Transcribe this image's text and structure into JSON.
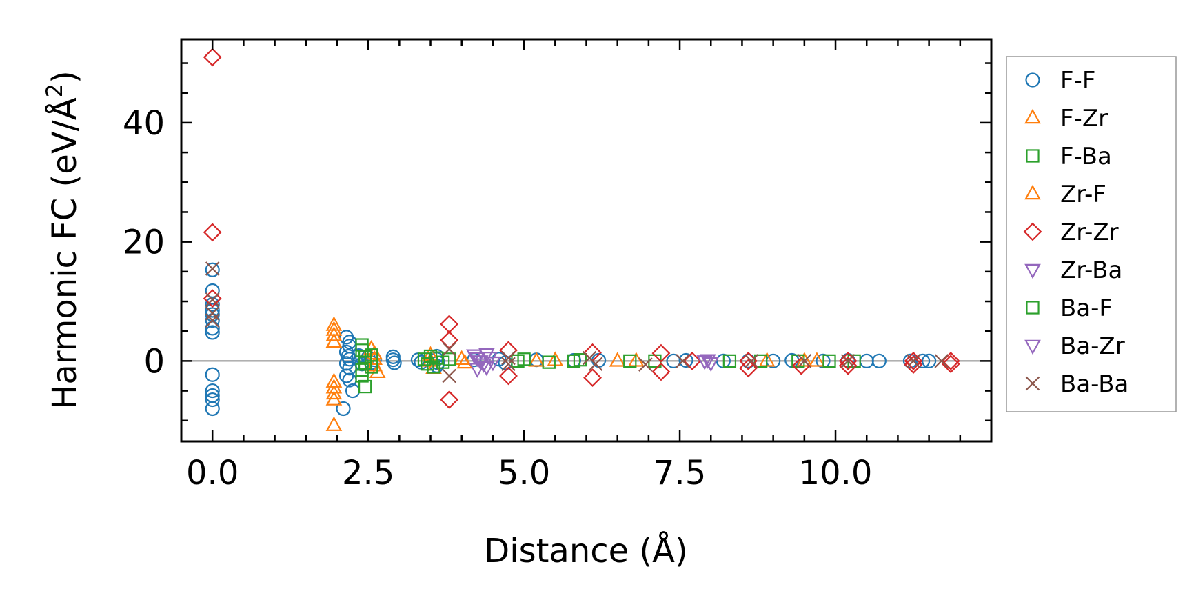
{
  "chart_data": {
    "type": "scatter",
    "title": "",
    "xlabel": "Distance (Å)",
    "ylabel_main": "Harmonic FC (eV/Å",
    "ylabel_sup": "2",
    "ylabel_close": ")",
    "xlim": [
      -0.5,
      12.5
    ],
    "ylim": [
      -13.5,
      54
    ],
    "xticks": [
      0.0,
      2.5,
      5.0,
      7.5,
      10.0
    ],
    "xtick_labels": [
      "0.0",
      "2.5",
      "5.0",
      "7.5",
      "10.0"
    ],
    "yticks": [
      0,
      20,
      40
    ],
    "ytick_labels": [
      "0",
      "20",
      "40"
    ],
    "zero_line": true,
    "legend_position": "outside-right",
    "series": [
      {
        "name": "F-F",
        "marker": "circle",
        "color": "#1f77b4",
        "points": [
          [
            0,
            15.3
          ],
          [
            0,
            11.8
          ],
          [
            0,
            9.5
          ],
          [
            0,
            8.5
          ],
          [
            0,
            7.8
          ],
          [
            0,
            6.8
          ],
          [
            0,
            5.5
          ],
          [
            0,
            4.8
          ],
          [
            0,
            -2.3
          ],
          [
            0,
            -5
          ],
          [
            0,
            -5.8
          ],
          [
            0,
            -6.5
          ],
          [
            0,
            -8
          ],
          [
            2.15,
            4
          ],
          [
            2.2,
            3.2
          ],
          [
            2.2,
            2.5
          ],
          [
            2.15,
            1.5
          ],
          [
            2.18,
            0.8
          ],
          [
            2.2,
            0.3
          ],
          [
            2.15,
            -0.4
          ],
          [
            2.2,
            -1.2
          ],
          [
            2.15,
            -2.5
          ],
          [
            2.2,
            -3.2
          ],
          [
            2.25,
            -5
          ],
          [
            2.1,
            -8
          ],
          [
            2.35,
            0.9
          ],
          [
            2.4,
            -0.5
          ],
          [
            2.5,
            0.6
          ],
          [
            2.55,
            -0.3
          ],
          [
            2.6,
            0.2
          ],
          [
            2.9,
            0.7
          ],
          [
            2.9,
            0.2
          ],
          [
            2.92,
            -0.3
          ],
          [
            3.3,
            0.2
          ],
          [
            3.35,
            -0.2
          ],
          [
            3.6,
            0.8
          ],
          [
            3.6,
            0.3
          ],
          [
            3.62,
            -0.3
          ],
          [
            3.6,
            -0.8
          ],
          [
            4.2,
            0.2
          ],
          [
            4.6,
            0.3
          ],
          [
            4.7,
            -0.3
          ],
          [
            5.2,
            0.2
          ],
          [
            5.8,
            0.1
          ],
          [
            6.2,
            0.1
          ],
          [
            7.4,
            0
          ],
          [
            7.6,
            0.1
          ],
          [
            8.2,
            0
          ],
          [
            8.6,
            0
          ],
          [
            9.0,
            0
          ],
          [
            9.3,
            0.1
          ],
          [
            9.8,
            0
          ],
          [
            10.2,
            0.1
          ],
          [
            10.5,
            0
          ],
          [
            10.7,
            0
          ],
          [
            11.2,
            0
          ],
          [
            11.4,
            0
          ],
          [
            11.5,
            0
          ]
        ]
      },
      {
        "name": "F-Zr",
        "marker": "triangle-up",
        "color": "#ff7f0e",
        "points": [
          [
            1.95,
            6
          ],
          [
            1.95,
            5.2
          ],
          [
            1.95,
            4.3
          ],
          [
            1.95,
            3.2
          ],
          [
            1.95,
            -3.5
          ],
          [
            1.95,
            -4.5
          ],
          [
            1.95,
            -5.5
          ],
          [
            1.95,
            -6.5
          ],
          [
            1.95,
            -10.8
          ],
          [
            2.55,
            2
          ],
          [
            2.6,
            1.2
          ],
          [
            2.6,
            0.3
          ],
          [
            2.6,
            -0.8
          ],
          [
            2.65,
            -1.9
          ],
          [
            3.5,
            1
          ],
          [
            3.5,
            0
          ],
          [
            3.55,
            -1.2
          ],
          [
            4.0,
            0.3
          ],
          [
            4.05,
            -0.3
          ],
          [
            5.2,
            0
          ],
          [
            5.5,
            0.1
          ],
          [
            6.5,
            0
          ],
          [
            6.8,
            0
          ],
          [
            8.9,
            0
          ],
          [
            9.5,
            0
          ],
          [
            9.7,
            0
          ]
        ]
      },
      {
        "name": "F-Ba",
        "marker": "square",
        "color": "#2ca02c",
        "points": [
          [
            2.4,
            2.7
          ],
          [
            2.4,
            1.8
          ],
          [
            2.45,
            0.7
          ],
          [
            2.45,
            -0.3
          ],
          [
            2.4,
            -1.5
          ],
          [
            2.4,
            -2.5
          ],
          [
            2.45,
            -4.3
          ],
          [
            2.55,
            1
          ],
          [
            2.55,
            -1
          ],
          [
            3.4,
            0.3
          ],
          [
            3.45,
            -0.5
          ],
          [
            3.5,
            0.8
          ],
          [
            3.55,
            -1
          ],
          [
            3.6,
            0.5
          ],
          [
            3.7,
            -0.2
          ],
          [
            3.8,
            0.3
          ],
          [
            4.9,
            0
          ],
          [
            5.0,
            0.3
          ],
          [
            5.4,
            -0.2
          ],
          [
            5.8,
            0
          ],
          [
            5.9,
            0.2
          ],
          [
            6.7,
            0
          ],
          [
            7.1,
            0
          ],
          [
            8.3,
            0
          ],
          [
            8.8,
            0
          ],
          [
            9.4,
            0
          ],
          [
            9.9,
            0
          ],
          [
            10.3,
            0
          ]
        ]
      },
      {
        "name": "Zr-F",
        "marker": "triangle-up",
        "color": "#ff7f0e",
        "points": []
      },
      {
        "name": "Zr-Zr",
        "marker": "diamond",
        "color": "#d62728",
        "points": [
          [
            0,
            51
          ],
          [
            0,
            21.6
          ],
          [
            0,
            10.5
          ],
          [
            3.8,
            6.2
          ],
          [
            3.8,
            3.5
          ],
          [
            3.8,
            -6.5
          ],
          [
            4.75,
            1.8
          ],
          [
            4.75,
            -2.5
          ],
          [
            6.1,
            1.4
          ],
          [
            6.1,
            -2.8
          ],
          [
            7.2,
            1.3
          ],
          [
            7.2,
            -1.8
          ],
          [
            7.7,
            0
          ],
          [
            8.6,
            0
          ],
          [
            8.6,
            -1.2
          ],
          [
            9.45,
            -0.8
          ],
          [
            10.2,
            0
          ],
          [
            10.2,
            -0.8
          ],
          [
            11.25,
            0
          ],
          [
            11.25,
            -0.6
          ],
          [
            11.85,
            0
          ],
          [
            11.85,
            -0.5
          ]
        ]
      },
      {
        "name": "Zr-Ba",
        "marker": "triangle-down",
        "color": "#9467bd",
        "points": [
          [
            4.2,
            1
          ],
          [
            4.25,
            0.5
          ],
          [
            4.3,
            0
          ],
          [
            4.35,
            -0.5
          ],
          [
            4.4,
            -1
          ],
          [
            4.45,
            0.6
          ],
          [
            4.5,
            -0.2
          ],
          [
            4.25,
            -1.3
          ],
          [
            4.4,
            1.2
          ],
          [
            7.9,
            0
          ],
          [
            8.0,
            -0.3
          ],
          [
            7.95,
            0.2
          ]
        ]
      },
      {
        "name": "Ba-F",
        "marker": "square",
        "color": "#2ca02c",
        "points": []
      },
      {
        "name": "Ba-Zr",
        "marker": "triangle-down",
        "color": "#9467bd",
        "points": []
      },
      {
        "name": "Ba-Ba",
        "marker": "x",
        "color": "#8c564b",
        "points": [
          [
            0,
            15.5
          ],
          [
            0,
            10.3
          ],
          [
            0,
            8
          ],
          [
            0,
            6.8
          ],
          [
            3.8,
            2
          ],
          [
            3.8,
            -2.5
          ],
          [
            4.75,
            0.5
          ],
          [
            4.75,
            -0.5
          ],
          [
            6.05,
            0.5
          ],
          [
            6.15,
            -0.5
          ],
          [
            6.95,
            -0.6
          ],
          [
            7.55,
            0
          ],
          [
            8.65,
            0
          ],
          [
            9.5,
            0
          ],
          [
            10.2,
            0
          ],
          [
            11.25,
            0
          ],
          [
            11.7,
            0
          ]
        ]
      }
    ]
  }
}
